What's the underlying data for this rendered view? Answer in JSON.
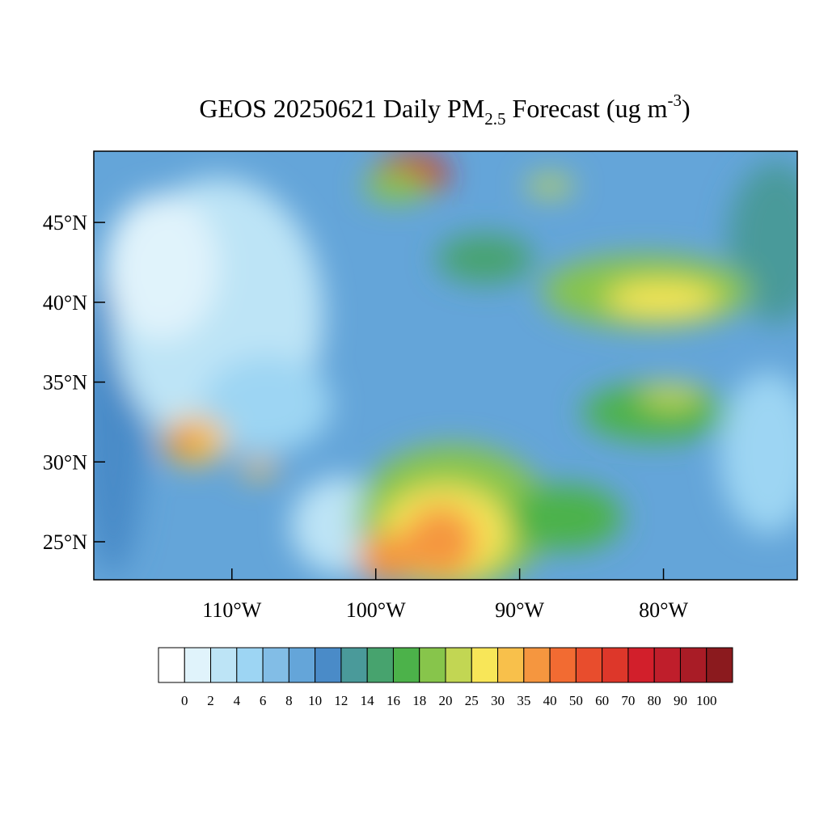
{
  "chart_data": {
    "type": "map",
    "title": {
      "main": "GEOS 20250621 Daily PM",
      "subscript": "2.5",
      "middle": " Forecast (ug m",
      "superscript": "-3",
      "end": ")"
    },
    "xlim": [
      -119.6,
      -70.7
    ],
    "ylim": [
      22.62,
      49.46
    ],
    "xticks": [
      {
        "value": -110,
        "label": "110°W"
      },
      {
        "value": -100,
        "label": "100°W"
      },
      {
        "value": -90,
        "label": "90°W"
      },
      {
        "value": -80,
        "label": "80°W"
      }
    ],
    "yticks": [
      {
        "value": 45,
        "label": "45°N"
      },
      {
        "value": 40,
        "label": "40°N"
      },
      {
        "value": 35,
        "label": "35°N"
      },
      {
        "value": 30,
        "label": "30°N"
      },
      {
        "value": 25,
        "label": "25°N"
      }
    ],
    "colorbar": {
      "levels": [
        0,
        2,
        4,
        6,
        8,
        10,
        12,
        14,
        16,
        18,
        20,
        25,
        30,
        35,
        40,
        50,
        60,
        70,
        80,
        90,
        100
      ],
      "colors": [
        "#ffffff",
        "#e0f3fb",
        "#bde4f6",
        "#9dd5f3",
        "#82bde6",
        "#64a5d9",
        "#4a8bc8",
        "#4a9a9a",
        "#47a36e",
        "#4cb24a",
        "#87c54b",
        "#c2d653",
        "#f8e658",
        "#f8c04b",
        "#f5963f",
        "#f26b32",
        "#e84d2d",
        "#dd372a",
        "#d21f2b",
        "#bf1e2b",
        "#a91c26",
        "#8b1a1e"
      ]
    }
  }
}
